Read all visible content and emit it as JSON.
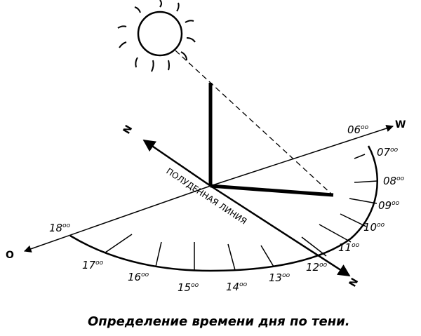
{
  "caption": "Определение времени дня по тени.",
  "noon_line_label": "ПОЛУДЕННАЯ ЛИНИЯ",
  "directions": {
    "west": "W",
    "east": "O",
    "north_top": "N",
    "north_bottom": "N"
  },
  "hours": [
    "06",
    "07",
    "08",
    "09",
    "10",
    "11",
    "12",
    "13",
    "14",
    "15",
    "16",
    "17",
    "18"
  ],
  "hour_suffix": "oo"
}
